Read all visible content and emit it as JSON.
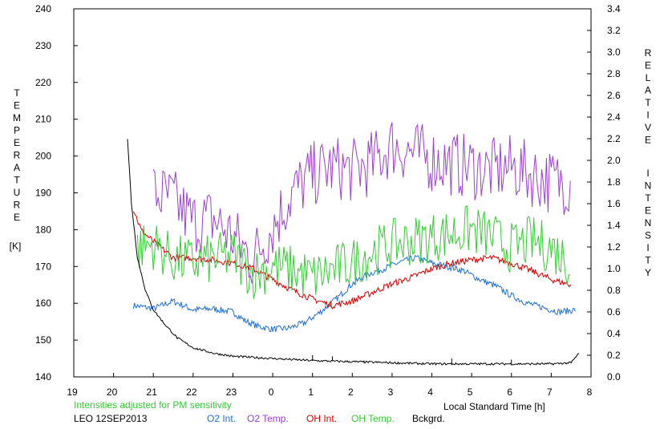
{
  "chart_data": {
    "type": "line",
    "x_ticks": [
      "19",
      "20",
      "21",
      "22",
      "23",
      "0",
      "1",
      "2",
      "3",
      "4",
      "5",
      "6",
      "7",
      "8"
    ],
    "x_range": [
      19,
      32
    ],
    "left_axis": {
      "label_letters": [
        "T",
        "E",
        "M",
        "P",
        "E",
        "R",
        "A",
        "T",
        "U",
        "R",
        "E"
      ],
      "unit": "[K]",
      "range": [
        140,
        240
      ],
      "ticks": [
        "140",
        "150",
        "160",
        "170",
        "180",
        "190",
        "200",
        "210",
        "220",
        "230",
        "240"
      ]
    },
    "right_axis": {
      "label_word1": [
        "R",
        "E",
        "L",
        "A",
        "T",
        "I",
        "V",
        "E"
      ],
      "label_word2": [
        "I",
        "N",
        "T",
        "E",
        "N",
        "S",
        "I",
        "T",
        "Y"
      ],
      "range": [
        0.0,
        3.4
      ],
      "ticks": [
        "0.0",
        "0.2",
        "0.4",
        "0.6",
        "0.8",
        "1.0",
        "1.2",
        "1.4",
        "1.6",
        "1.8",
        "2.0",
        "2.2",
        "2.4",
        "2.6",
        "2.8",
        "3.0",
        "3.2",
        "3.4"
      ]
    },
    "xlabel": "Local Standard Time [h]",
    "note": "Intensities adjusted for PM sensitivity",
    "station": "LEO 12SEP2013",
    "series": [
      {
        "name": "O2 Int.",
        "axis": "right",
        "color": "#1f6fd6",
        "x": [
          20.5,
          21.0,
          21.5,
          22.0,
          22.5,
          23.0,
          23.3,
          23.6,
          24.0,
          24.4,
          24.8,
          25.2,
          25.6,
          26.0,
          26.4,
          26.8,
          27.2,
          27.6,
          28.0,
          28.4,
          28.8,
          29.2,
          29.6,
          30.0,
          30.4,
          30.8,
          31.2,
          31.6
        ],
        "y": [
          0.66,
          0.63,
          0.7,
          0.62,
          0.63,
          0.6,
          0.52,
          0.47,
          0.44,
          0.45,
          0.5,
          0.6,
          0.72,
          0.86,
          0.95,
          1.0,
          1.06,
          1.1,
          1.05,
          1.02,
          0.98,
          0.9,
          0.84,
          0.75,
          0.68,
          0.64,
          0.6,
          0.62
        ]
      },
      {
        "name": "O2 Temp.",
        "axis": "left",
        "color": "#9b3fd0",
        "x": [
          21.0,
          21.5,
          22.0,
          22.5,
          23.0,
          23.5,
          24.0,
          24.5,
          25.0,
          25.5,
          26.0,
          26.5,
          27.0,
          27.5,
          28.0,
          28.5,
          29.0,
          29.5,
          30.0,
          30.5,
          31.0,
          31.5
        ],
        "y": [
          190,
          188,
          182,
          183,
          178,
          172,
          181,
          190,
          195,
          197,
          196,
          198,
          203,
          201,
          199,
          198,
          197,
          196,
          197,
          195,
          193,
          193
        ],
        "amplitude": 9
      },
      {
        "name": "OH Int.",
        "axis": "right",
        "color": "#d40000",
        "x": [
          20.5,
          20.7,
          21.0,
          21.5,
          22.0,
          22.5,
          23.0,
          23.5,
          24.0,
          24.5,
          25.0,
          25.5,
          26.0,
          26.5,
          27.0,
          27.5,
          28.0,
          28.5,
          29.0,
          29.5,
          30.0,
          30.5,
          31.0,
          31.5
        ],
        "y": [
          1.55,
          1.35,
          1.25,
          1.1,
          1.1,
          1.08,
          1.05,
          1.0,
          0.9,
          0.8,
          0.72,
          0.66,
          0.7,
          0.78,
          0.86,
          0.92,
          1.0,
          1.05,
          1.08,
          1.1,
          1.05,
          0.98,
          0.9,
          0.85
        ]
      },
      {
        "name": "OH Temp.",
        "axis": "left",
        "color": "#33cc33",
        "x": [
          20.6,
          21.0,
          21.5,
          22.0,
          22.5,
          23.0,
          23.5,
          24.0,
          24.5,
          25.0,
          25.5,
          26.0,
          26.5,
          27.0,
          27.5,
          28.0,
          28.5,
          29.0,
          29.5,
          30.0,
          30.5,
          31.0,
          31.5
        ],
        "y": [
          175,
          176,
          172,
          171,
          172,
          173,
          168,
          170,
          169,
          167,
          169,
          171,
          174,
          176,
          177,
          178,
          179,
          180,
          178,
          175,
          177,
          175,
          171
        ],
        "amplitude": 7
      },
      {
        "name": "Bckgrd.",
        "axis": "right",
        "color": "#000000",
        "x": [
          20.35,
          20.45,
          20.6,
          20.8,
          21.0,
          21.3,
          21.6,
          22.0,
          22.5,
          23.0,
          23.5,
          24.0,
          25.0,
          26.0,
          27.0,
          28.0,
          29.0,
          30.0,
          31.0,
          31.5,
          31.7
        ],
        "y": [
          2.2,
          1.6,
          1.1,
          0.8,
          0.62,
          0.48,
          0.36,
          0.27,
          0.22,
          0.19,
          0.18,
          0.17,
          0.15,
          0.14,
          0.13,
          0.12,
          0.12,
          0.12,
          0.12,
          0.13,
          0.22
        ],
        "spikes": [
          [
            22.3,
            0.24
          ],
          [
            23.7,
            0.18
          ],
          [
            25.0,
            0.2
          ],
          [
            25.5,
            0.19
          ],
          [
            26.3,
            0.15
          ],
          [
            28.5,
            0.17
          ],
          [
            30.0,
            0.16
          ]
        ]
      }
    ],
    "grid": false
  }
}
